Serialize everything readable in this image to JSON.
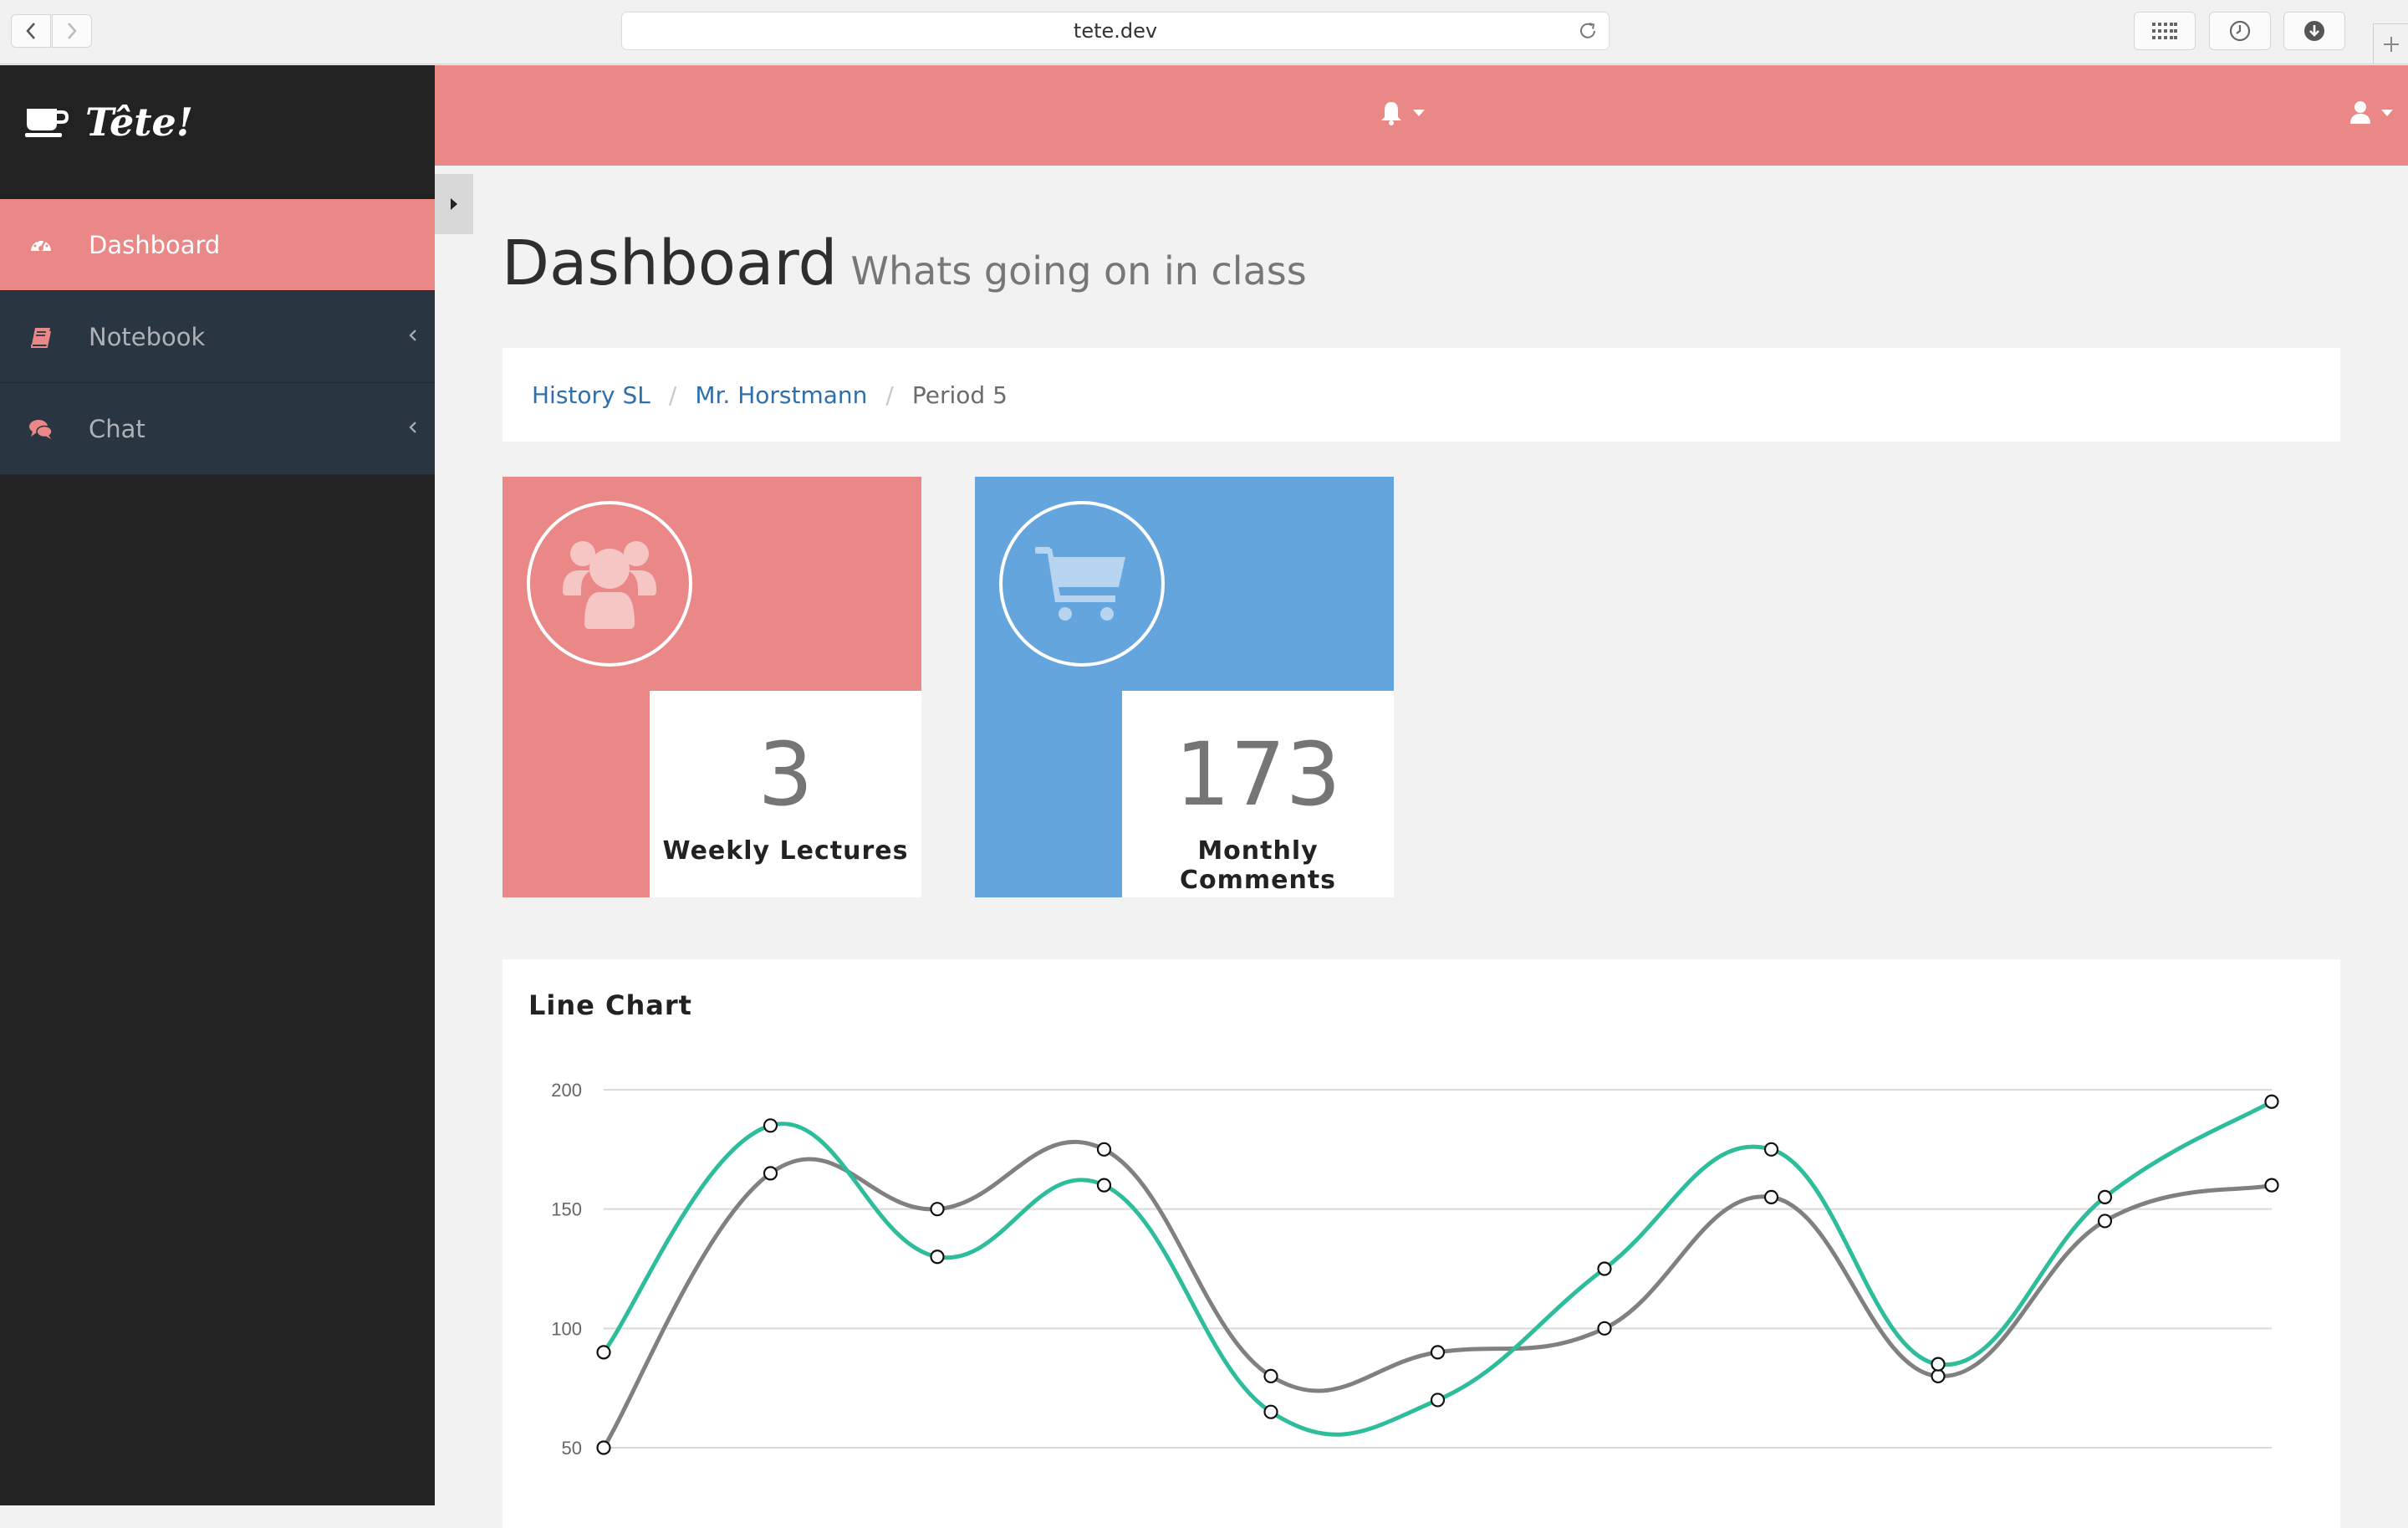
{
  "browser": {
    "url": "tete.dev"
  },
  "brand": {
    "name": "Tête!"
  },
  "sidebar": {
    "items": [
      {
        "label": "Dashboard",
        "icon": "dashboard-icon",
        "active": true
      },
      {
        "label": "Notebook",
        "icon": "book-icon",
        "active": false
      },
      {
        "label": "Chat",
        "icon": "comments-icon",
        "active": false
      }
    ]
  },
  "header": {
    "title": "Dashboard",
    "subtitle": "Whats going on in class"
  },
  "breadcrumb": {
    "items": [
      "History SL",
      "Mr. Horstmann",
      "Period 5"
    ]
  },
  "stats": [
    {
      "value": "3",
      "label": "Weekly Lectures",
      "icon": "users-icon",
      "color": "#e98886"
    },
    {
      "value": "173",
      "label": "Monthly Comments",
      "icon": "shopping-cart-icon",
      "color": "#65a5dd"
    }
  ],
  "colors": {
    "accent": "#e98886",
    "blue": "#65a5dd",
    "sidebar_bg": "#222222",
    "menu_bg": "#2a3542",
    "series_teal": "#2ebd9b",
    "series_gray": "#808080"
  },
  "chart_data": {
    "type": "line",
    "title": "Line Chart",
    "ytick_labels": [
      "200",
      "150",
      "100",
      "50"
    ],
    "yticks": [
      200,
      150,
      100,
      50
    ],
    "ylim": [
      50,
      200
    ],
    "grid": true,
    "series": [
      {
        "color": "#2ebd9b",
        "values": [
          90,
          185,
          130,
          160,
          65,
          70,
          125,
          175,
          85,
          155,
          195
        ]
      },
      {
        "color": "#808080",
        "values": [
          50,
          165,
          150,
          175,
          80,
          90,
          100,
          155,
          80,
          145,
          160
        ]
      }
    ]
  }
}
